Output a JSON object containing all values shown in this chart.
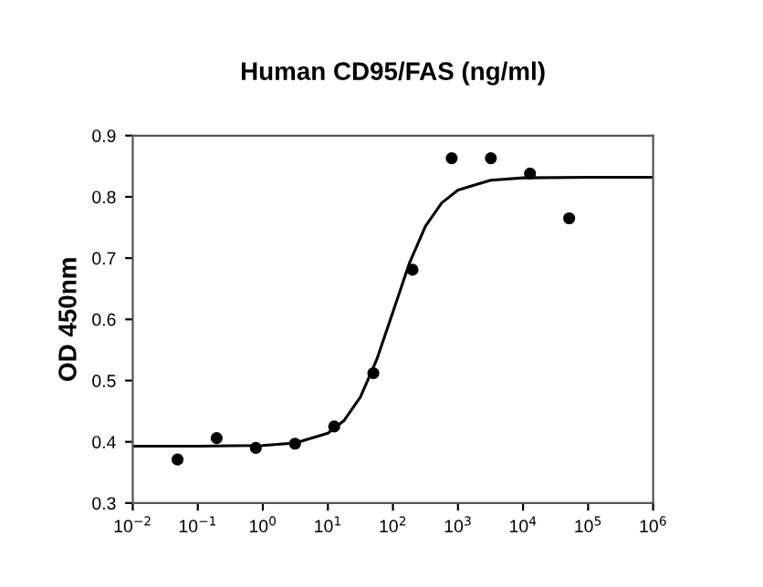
{
  "chart_data": {
    "type": "scatter",
    "title": "Human CD95/FAS (ng/ml)",
    "ylabel": "OD 450nm",
    "log": "x",
    "grid": false,
    "legend": false,
    "xlim": [
      0.01,
      1000000
    ],
    "xticks": [
      {
        "value": 0.01,
        "label": "10$^{−2}$"
      },
      {
        "value": 0.1,
        "label": "10$^{−1}$"
      },
      {
        "value": 1,
        "label": "10$^{0}$"
      },
      {
        "value": 10,
        "label": "10$^{1}$"
      },
      {
        "value": 100,
        "label": "10$^{2}$"
      },
      {
        "value": 1000,
        "label": "10$^{3}$"
      },
      {
        "value": 10000,
        "label": "10$^{4}$"
      },
      {
        "value": 100000,
        "label": "10$^{5}$"
      },
      {
        "value": 1000000,
        "label": "10$^{6}$"
      }
    ],
    "ylim": [
      0.3,
      0.9
    ],
    "yticks": [
      0.3,
      0.4,
      0.5,
      0.6,
      0.7,
      0.8,
      0.9
    ],
    "series": [
      {
        "color": "#000000",
        "marker": "circle",
        "x": [
          0.0488,
          0.195,
          0.78,
          3.125,
          12.5,
          50,
          200,
          800,
          3200,
          12800,
          51200
        ],
        "values": [
          0.371,
          0.406,
          0.39,
          0.397,
          0.425,
          0.512,
          0.681,
          0.863,
          0.863,
          0.838,
          0.765
        ]
      },
      {
        "type": "line",
        "color": "#000000",
        "marker": "none",
        "line_style": "solid",
        "x": [
          0.01,
          0.1,
          1,
          3.16,
          10,
          17.8,
          31.6,
          56.2,
          100,
          178,
          316,
          562,
          1000,
          3162,
          10000,
          100000,
          1000000
        ],
        "values": [
          0.393,
          0.393,
          0.394,
          0.398,
          0.414,
          0.435,
          0.473,
          0.534,
          0.612,
          0.691,
          0.752,
          0.79,
          0.811,
          0.827,
          0.831,
          0.832,
          0.832
        ]
      }
    ]
  }
}
